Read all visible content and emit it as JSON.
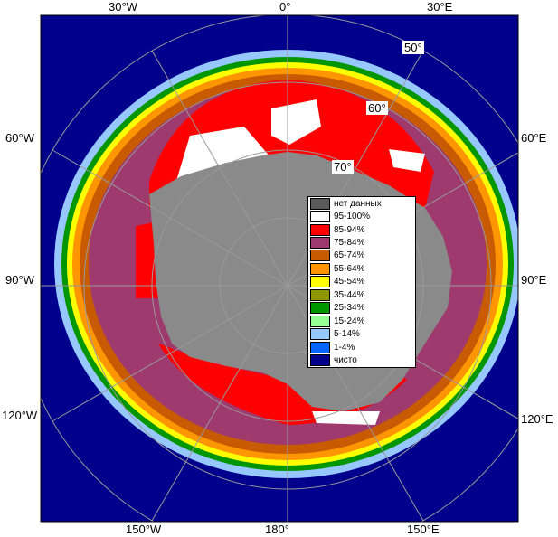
{
  "longitude_labels": {
    "top": [
      "30°W",
      "0°",
      "30°E"
    ],
    "left": [
      "60°W",
      "90°W",
      "120°W"
    ],
    "right": [
      "60°E",
      "90°E",
      "120°E"
    ],
    "bottom": [
      "150°W",
      "180°",
      "150°E"
    ]
  },
  "latitude_labels": [
    "50°",
    "60°",
    "70°"
  ],
  "legend": {
    "items": [
      {
        "label": "нет данных",
        "color": "#5a5a5a"
      },
      {
        "label": "95-100%",
        "color": "#ffffff"
      },
      {
        "label": "85-94%",
        "color": "#ff0000"
      },
      {
        "label": "75-84%",
        "color": "#9e3a6e"
      },
      {
        "label": "65-74%",
        "color": "#c85a00"
      },
      {
        "label": "55-64%",
        "color": "#ff9600"
      },
      {
        "label": "45-54%",
        "color": "#ffff00"
      },
      {
        "label": "35-44%",
        "color": "#8c9600"
      },
      {
        "label": "25-34%",
        "color": "#009600"
      },
      {
        "label": "15-24%",
        "color": "#96ff96"
      },
      {
        "label": "5-14%",
        "color": "#96c8ff"
      },
      {
        "label": "1-4%",
        "color": "#0064ff"
      },
      {
        "label": "чисто",
        "color": "#00008c"
      }
    ]
  },
  "colors": {
    "ocean": "#00008c",
    "land": "#8a8a8a",
    "frame": "#000000",
    "grid": "#9a9a9a"
  }
}
